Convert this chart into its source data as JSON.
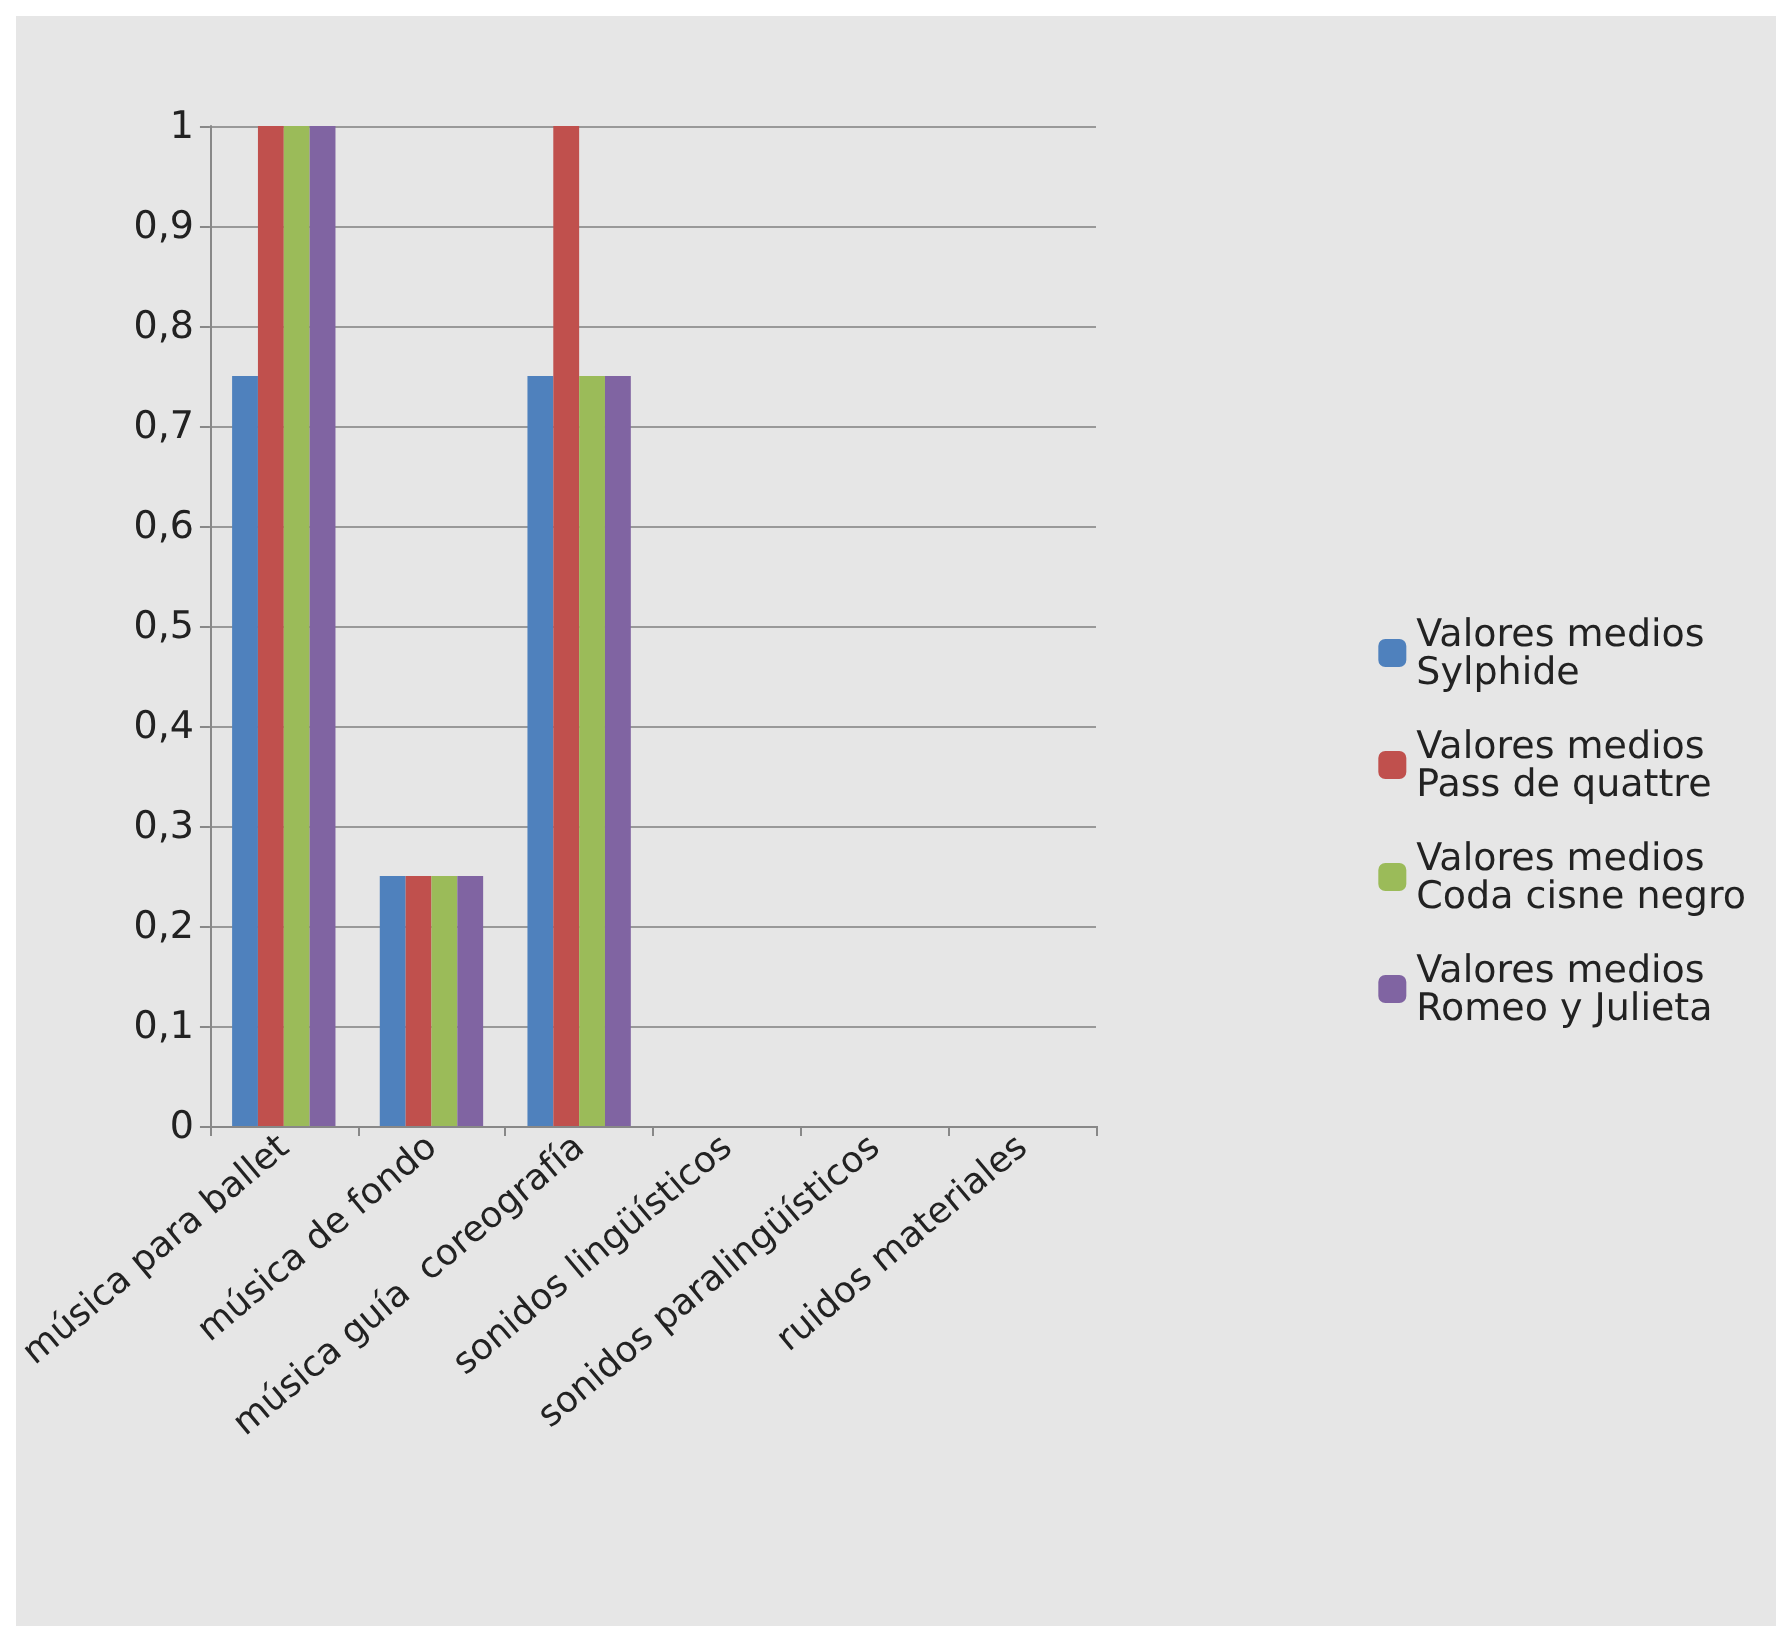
{
  "chart_data": {
    "type": "bar",
    "categories": [
      "música para ballet",
      "música de fondo",
      "música guía  coreografía",
      "sonidos lingüísticos",
      "sonidos paralingüísticos",
      "ruidos materiales"
    ],
    "series": [
      {
        "name": "Valores medios Sylphide",
        "color": "#4f81bd",
        "values": [
          0.75,
          0.25,
          0.75,
          0,
          0,
          0
        ]
      },
      {
        "name": "Valores medios Pass de quattre",
        "color": "#c0504d",
        "values": [
          1,
          0.25,
          1,
          0,
          0,
          0
        ]
      },
      {
        "name": "Valores medios Coda cisne negro",
        "color": "#9bbb59",
        "values": [
          1,
          0.25,
          0.75,
          0,
          0,
          0
        ]
      },
      {
        "name": "Valores medios Romeo y Julieta",
        "color": "#8064a2",
        "values": [
          1,
          0.25,
          0.75,
          0,
          0,
          0
        ]
      }
    ],
    "ylim": [
      0,
      1
    ],
    "yticks": [
      0,
      {
        "value": 0.1,
        "label": "0,1"
      },
      {
        "value": 0.2,
        "label": "0,2"
      },
      {
        "value": 0.3,
        "label": "0,3"
      },
      {
        "value": 0.4,
        "label": "0,4"
      },
      {
        "value": 0.5,
        "label": "0,5"
      },
      {
        "value": 0.6,
        "label": "0,6"
      },
      {
        "value": 0.7,
        "label": "0,7"
      },
      {
        "value": 0.8,
        "label": "0,8"
      },
      {
        "value": 0.9,
        "label": "0,9"
      },
      1
    ],
    "grid": "y",
    "legend": "right"
  }
}
